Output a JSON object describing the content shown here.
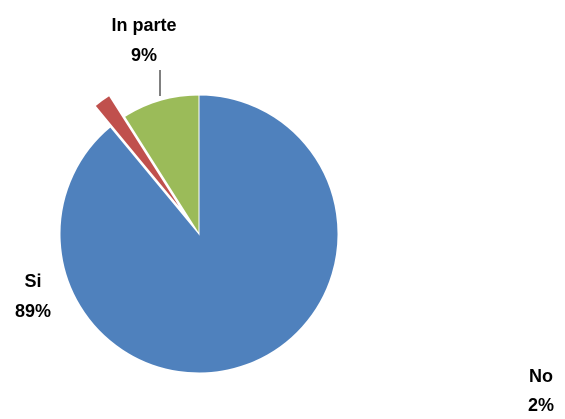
{
  "chart_data": {
    "type": "pie",
    "title": "",
    "legend": "none",
    "slices": [
      {
        "label": "Si",
        "value": 89,
        "percent_label": "89%",
        "color": "#4F81BD",
        "exploded": false
      },
      {
        "label": "No",
        "value": 2,
        "percent_label": "2%",
        "color": "#C0504D",
        "exploded": true
      },
      {
        "label": "In parte",
        "value": 9,
        "percent_label": "9%",
        "color": "#9BBB59",
        "exploded": false
      }
    ]
  }
}
